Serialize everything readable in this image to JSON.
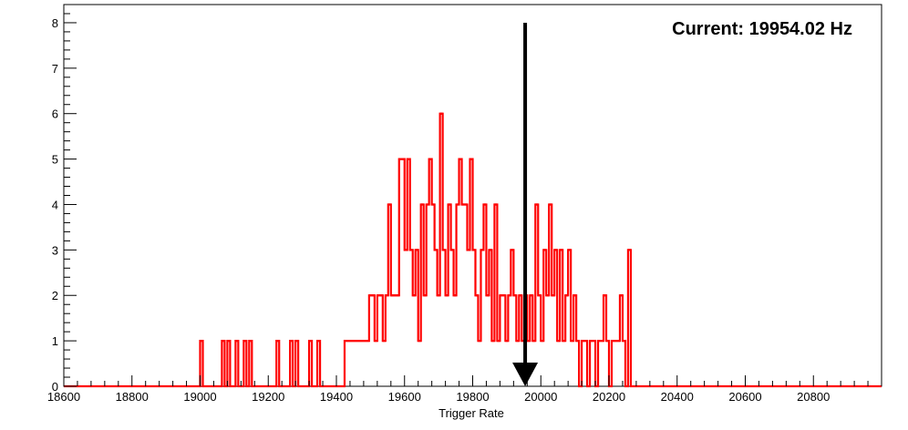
{
  "chart_data": {
    "type": "histogram",
    "title": "",
    "xlabel": "Trigger Rate",
    "ylabel": "",
    "xlim": [
      18600,
      21000
    ],
    "ylim": [
      0,
      8.4
    ],
    "x_ticks": [
      18600,
      18800,
      19000,
      19200,
      19400,
      19600,
      19800,
      20000,
      20200,
      20400,
      20600,
      20800
    ],
    "y_ticks": [
      0,
      1,
      2,
      3,
      4,
      5,
      6,
      7,
      8
    ],
    "bin_width": 8,
    "line_color": "#ff0000",
    "grid": false,
    "annotation": "Current: 19954.02 Hz",
    "marker": {
      "x": 19954.02,
      "y_top": 8,
      "y_bottom": 0,
      "color": "#000000"
    },
    "bins": [
      {
        "x": 19000,
        "y": 1
      },
      {
        "x": 19064,
        "y": 1
      },
      {
        "x": 19080,
        "y": 1
      },
      {
        "x": 19104,
        "y": 1
      },
      {
        "x": 19128,
        "y": 1
      },
      {
        "x": 19144,
        "y": 1
      },
      {
        "x": 19224,
        "y": 1
      },
      {
        "x": 19264,
        "y": 1
      },
      {
        "x": 19280,
        "y": 1
      },
      {
        "x": 19320,
        "y": 1
      },
      {
        "x": 19344,
        "y": 1
      },
      {
        "x": 19424,
        "y": 1
      },
      {
        "x": 19432,
        "y": 1
      },
      {
        "x": 19440,
        "y": 1
      },
      {
        "x": 19448,
        "y": 1
      },
      {
        "x": 19456,
        "y": 1
      },
      {
        "x": 19464,
        "y": 1
      },
      {
        "x": 19472,
        "y": 1
      },
      {
        "x": 19480,
        "y": 1
      },
      {
        "x": 19488,
        "y": 1
      },
      {
        "x": 19496,
        "y": 2
      },
      {
        "x": 19504,
        "y": 2
      },
      {
        "x": 19512,
        "y": 1
      },
      {
        "x": 19520,
        "y": 2
      },
      {
        "x": 19528,
        "y": 2
      },
      {
        "x": 19536,
        "y": 1
      },
      {
        "x": 19544,
        "y": 2
      },
      {
        "x": 19552,
        "y": 4
      },
      {
        "x": 19560,
        "y": 2
      },
      {
        "x": 19568,
        "y": 2
      },
      {
        "x": 19576,
        "y": 2
      },
      {
        "x": 19584,
        "y": 5
      },
      {
        "x": 19592,
        "y": 5
      },
      {
        "x": 19600,
        "y": 3
      },
      {
        "x": 19608,
        "y": 5
      },
      {
        "x": 19616,
        "y": 3
      },
      {
        "x": 19624,
        "y": 2
      },
      {
        "x": 19632,
        "y": 3
      },
      {
        "x": 19640,
        "y": 1
      },
      {
        "x": 19648,
        "y": 4
      },
      {
        "x": 19656,
        "y": 2
      },
      {
        "x": 19664,
        "y": 4
      },
      {
        "x": 19672,
        "y": 5
      },
      {
        "x": 19680,
        "y": 4
      },
      {
        "x": 19688,
        "y": 3
      },
      {
        "x": 19696,
        "y": 2
      },
      {
        "x": 19704,
        "y": 6
      },
      {
        "x": 19712,
        "y": 3
      },
      {
        "x": 19720,
        "y": 2
      },
      {
        "x": 19728,
        "y": 4
      },
      {
        "x": 19736,
        "y": 3
      },
      {
        "x": 19744,
        "y": 2
      },
      {
        "x": 19752,
        "y": 4
      },
      {
        "x": 19760,
        "y": 5
      },
      {
        "x": 19768,
        "y": 4
      },
      {
        "x": 19776,
        "y": 4
      },
      {
        "x": 19784,
        "y": 3
      },
      {
        "x": 19792,
        "y": 5
      },
      {
        "x": 19800,
        "y": 3
      },
      {
        "x": 19808,
        "y": 2
      },
      {
        "x": 19816,
        "y": 1
      },
      {
        "x": 19824,
        "y": 3
      },
      {
        "x": 19832,
        "y": 4
      },
      {
        "x": 19840,
        "y": 2
      },
      {
        "x": 19848,
        "y": 3
      },
      {
        "x": 19856,
        "y": 1
      },
      {
        "x": 19864,
        "y": 4
      },
      {
        "x": 19872,
        "y": 1
      },
      {
        "x": 19880,
        "y": 2
      },
      {
        "x": 19888,
        "y": 2
      },
      {
        "x": 19896,
        "y": 1
      },
      {
        "x": 19904,
        "y": 2
      },
      {
        "x": 19912,
        "y": 3
      },
      {
        "x": 19920,
        "y": 2
      },
      {
        "x": 19928,
        "y": 1
      },
      {
        "x": 19936,
        "y": 2
      },
      {
        "x": 19944,
        "y": 1
      },
      {
        "x": 19952,
        "y": 2
      },
      {
        "x": 19960,
        "y": 1
      },
      {
        "x": 19968,
        "y": 2
      },
      {
        "x": 19976,
        "y": 1
      },
      {
        "x": 19984,
        "y": 4
      },
      {
        "x": 19992,
        "y": 2
      },
      {
        "x": 20000,
        "y": 1
      },
      {
        "x": 20008,
        "y": 3
      },
      {
        "x": 20016,
        "y": 2
      },
      {
        "x": 20024,
        "y": 4
      },
      {
        "x": 20032,
        "y": 2
      },
      {
        "x": 20040,
        "y": 3
      },
      {
        "x": 20048,
        "y": 1
      },
      {
        "x": 20056,
        "y": 3
      },
      {
        "x": 20064,
        "y": 1
      },
      {
        "x": 20072,
        "y": 2
      },
      {
        "x": 20080,
        "y": 3
      },
      {
        "x": 20088,
        "y": 1
      },
      {
        "x": 20096,
        "y": 2
      },
      {
        "x": 20104,
        "y": 1
      },
      {
        "x": 20120,
        "y": 1
      },
      {
        "x": 20128,
        "y": 1
      },
      {
        "x": 20144,
        "y": 1
      },
      {
        "x": 20152,
        "y": 1
      },
      {
        "x": 20168,
        "y": 1
      },
      {
        "x": 20176,
        "y": 1
      },
      {
        "x": 20184,
        "y": 2
      },
      {
        "x": 20192,
        "y": 1
      },
      {
        "x": 20208,
        "y": 1
      },
      {
        "x": 20216,
        "y": 1
      },
      {
        "x": 20224,
        "y": 1
      },
      {
        "x": 20232,
        "y": 2
      },
      {
        "x": 20240,
        "y": 1
      },
      {
        "x": 20256,
        "y": 3
      }
    ]
  }
}
